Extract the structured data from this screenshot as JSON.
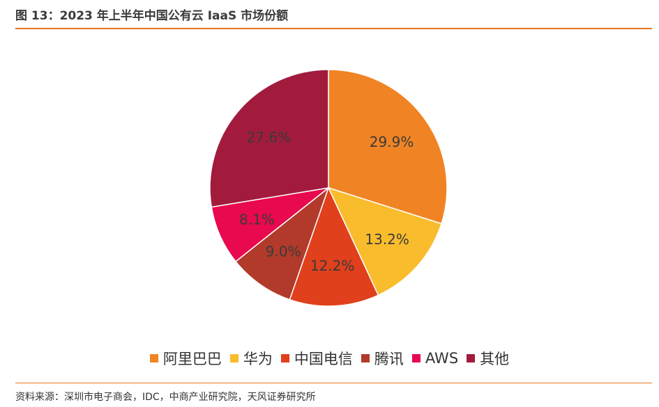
{
  "header": {
    "title": "图 13：2023 年上半年中国公有云 IaaS 市场份额"
  },
  "footer": {
    "source": "资料来源：深圳市电子商会，IDC，中商产业研究院，天风证券研究所"
  },
  "colors": {
    "accent": "#e8741e"
  },
  "chart_data": {
    "type": "pie",
    "categories": [
      "阿里巴巴",
      "华为",
      "中国电信",
      "腾讯",
      "AWS",
      "其他"
    ],
    "values": [
      29.9,
      13.2,
      12.2,
      9.0,
      8.1,
      27.6
    ],
    "labels": [
      "29.9%",
      "13.2%",
      "12.2%",
      "9.0%",
      "8.1%",
      "27.6%"
    ],
    "colors": [
      "#f08424",
      "#f9bc2c",
      "#e0401c",
      "#b23a2a",
      "#e8094f",
      "#a21b3d"
    ],
    "legend": "bottom",
    "start": "12 o'clock",
    "direction": "clockwise"
  }
}
